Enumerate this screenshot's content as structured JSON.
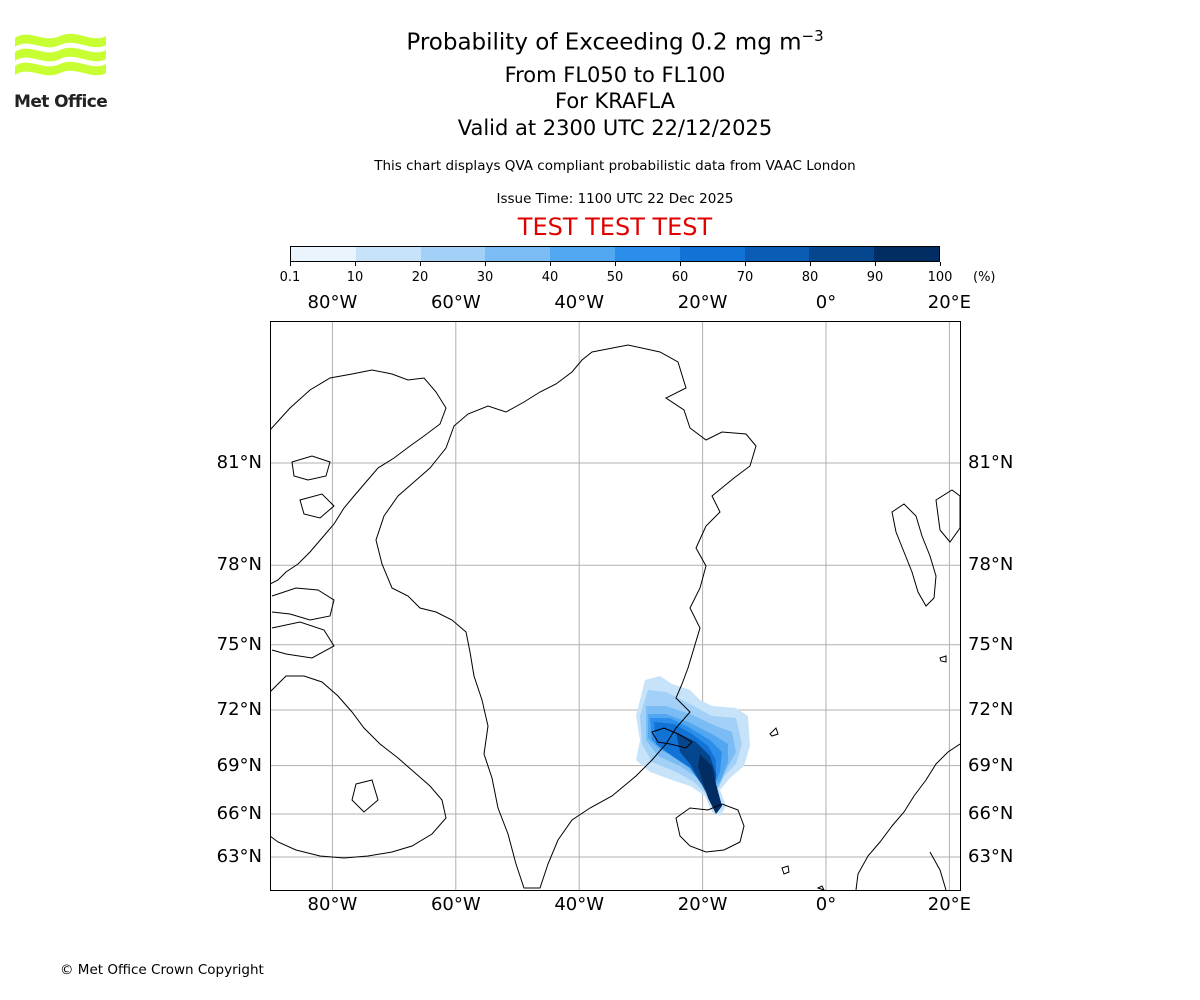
{
  "logo": {
    "text": "Met Office",
    "color": "#c8ff33"
  },
  "header": {
    "title_prefix": "Probability of Exceeding 0.2 mg m",
    "title_exponent": "−3",
    "subtitle_levels": "From FL050 to FL100",
    "subtitle_volcano": "For KRAFLA",
    "subtitle_valid": "Valid at 2300 UTC 22/12/2025",
    "disclaimer": "This chart displays QVA compliant probabilistic data from VAAC London",
    "issue_time": "Issue Time: 1100 UTC 22 Dec 2025",
    "test_banner": "TEST TEST TEST",
    "test_color": "#e00000"
  },
  "colorbar": {
    "ticks": [
      "0.1",
      "10",
      "20",
      "30",
      "40",
      "50",
      "60",
      "70",
      "80",
      "90",
      "100"
    ],
    "unit": "(%)",
    "colors": [
      "#eaf4fc",
      "#c6e3fa",
      "#a2d0f7",
      "#7bbcf4",
      "#52a7f1",
      "#2b8eea",
      "#1273d6",
      "#0a5cb4",
      "#05478f",
      "#022d62"
    ]
  },
  "map": {
    "lon_labels": [
      "80°W",
      "60°W",
      "40°W",
      "20°W",
      "0°",
      "20°E"
    ],
    "lat_labels": [
      "81°N",
      "78°N",
      "75°N",
      "72°N",
      "69°N",
      "66°N",
      "63°N"
    ],
    "lon_values": [
      -80,
      -60,
      -40,
      -20,
      0,
      20
    ],
    "lat_values": [
      81,
      78,
      75,
      72,
      69,
      66,
      63
    ]
  },
  "footer": {
    "copyright": "© Met Office Crown Copyright"
  }
}
